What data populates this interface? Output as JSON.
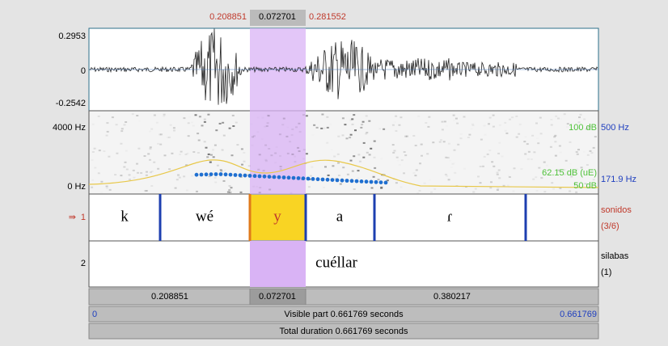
{
  "selection": {
    "start": "0.208851",
    "duration": "0.072701",
    "end": "0.281552"
  },
  "waveform": {
    "max": "0.2953",
    "zero": "0",
    "min": "-0.2542"
  },
  "spectrogram": {
    "top": "4000 Hz",
    "bottom": "0 Hz",
    "intensity_max": "100 dB",
    "pitch_max": "500 Hz",
    "intensity_value": "62.15 dB (uE)",
    "intensity_min": "50 dB",
    "pitch_value": "171.9 Hz"
  },
  "tiers": [
    {
      "number": "1",
      "marker": "⇛",
      "name": "sonidos",
      "count": "(3/6)",
      "intervals": [
        "k",
        "wé",
        "y",
        "a",
        "ɾ"
      ]
    },
    {
      "number": "2",
      "name": "silabas",
      "count": "(1)",
      "intervals": [
        "cuéllar"
      ]
    }
  ],
  "durations": [
    "0.208851",
    "0.072701",
    "0.380217"
  ],
  "visible": {
    "start": "0",
    "label": "Visible part 0.661769 seconds",
    "end": "0.661769"
  },
  "total": "Total duration 0.661769 seconds"
}
